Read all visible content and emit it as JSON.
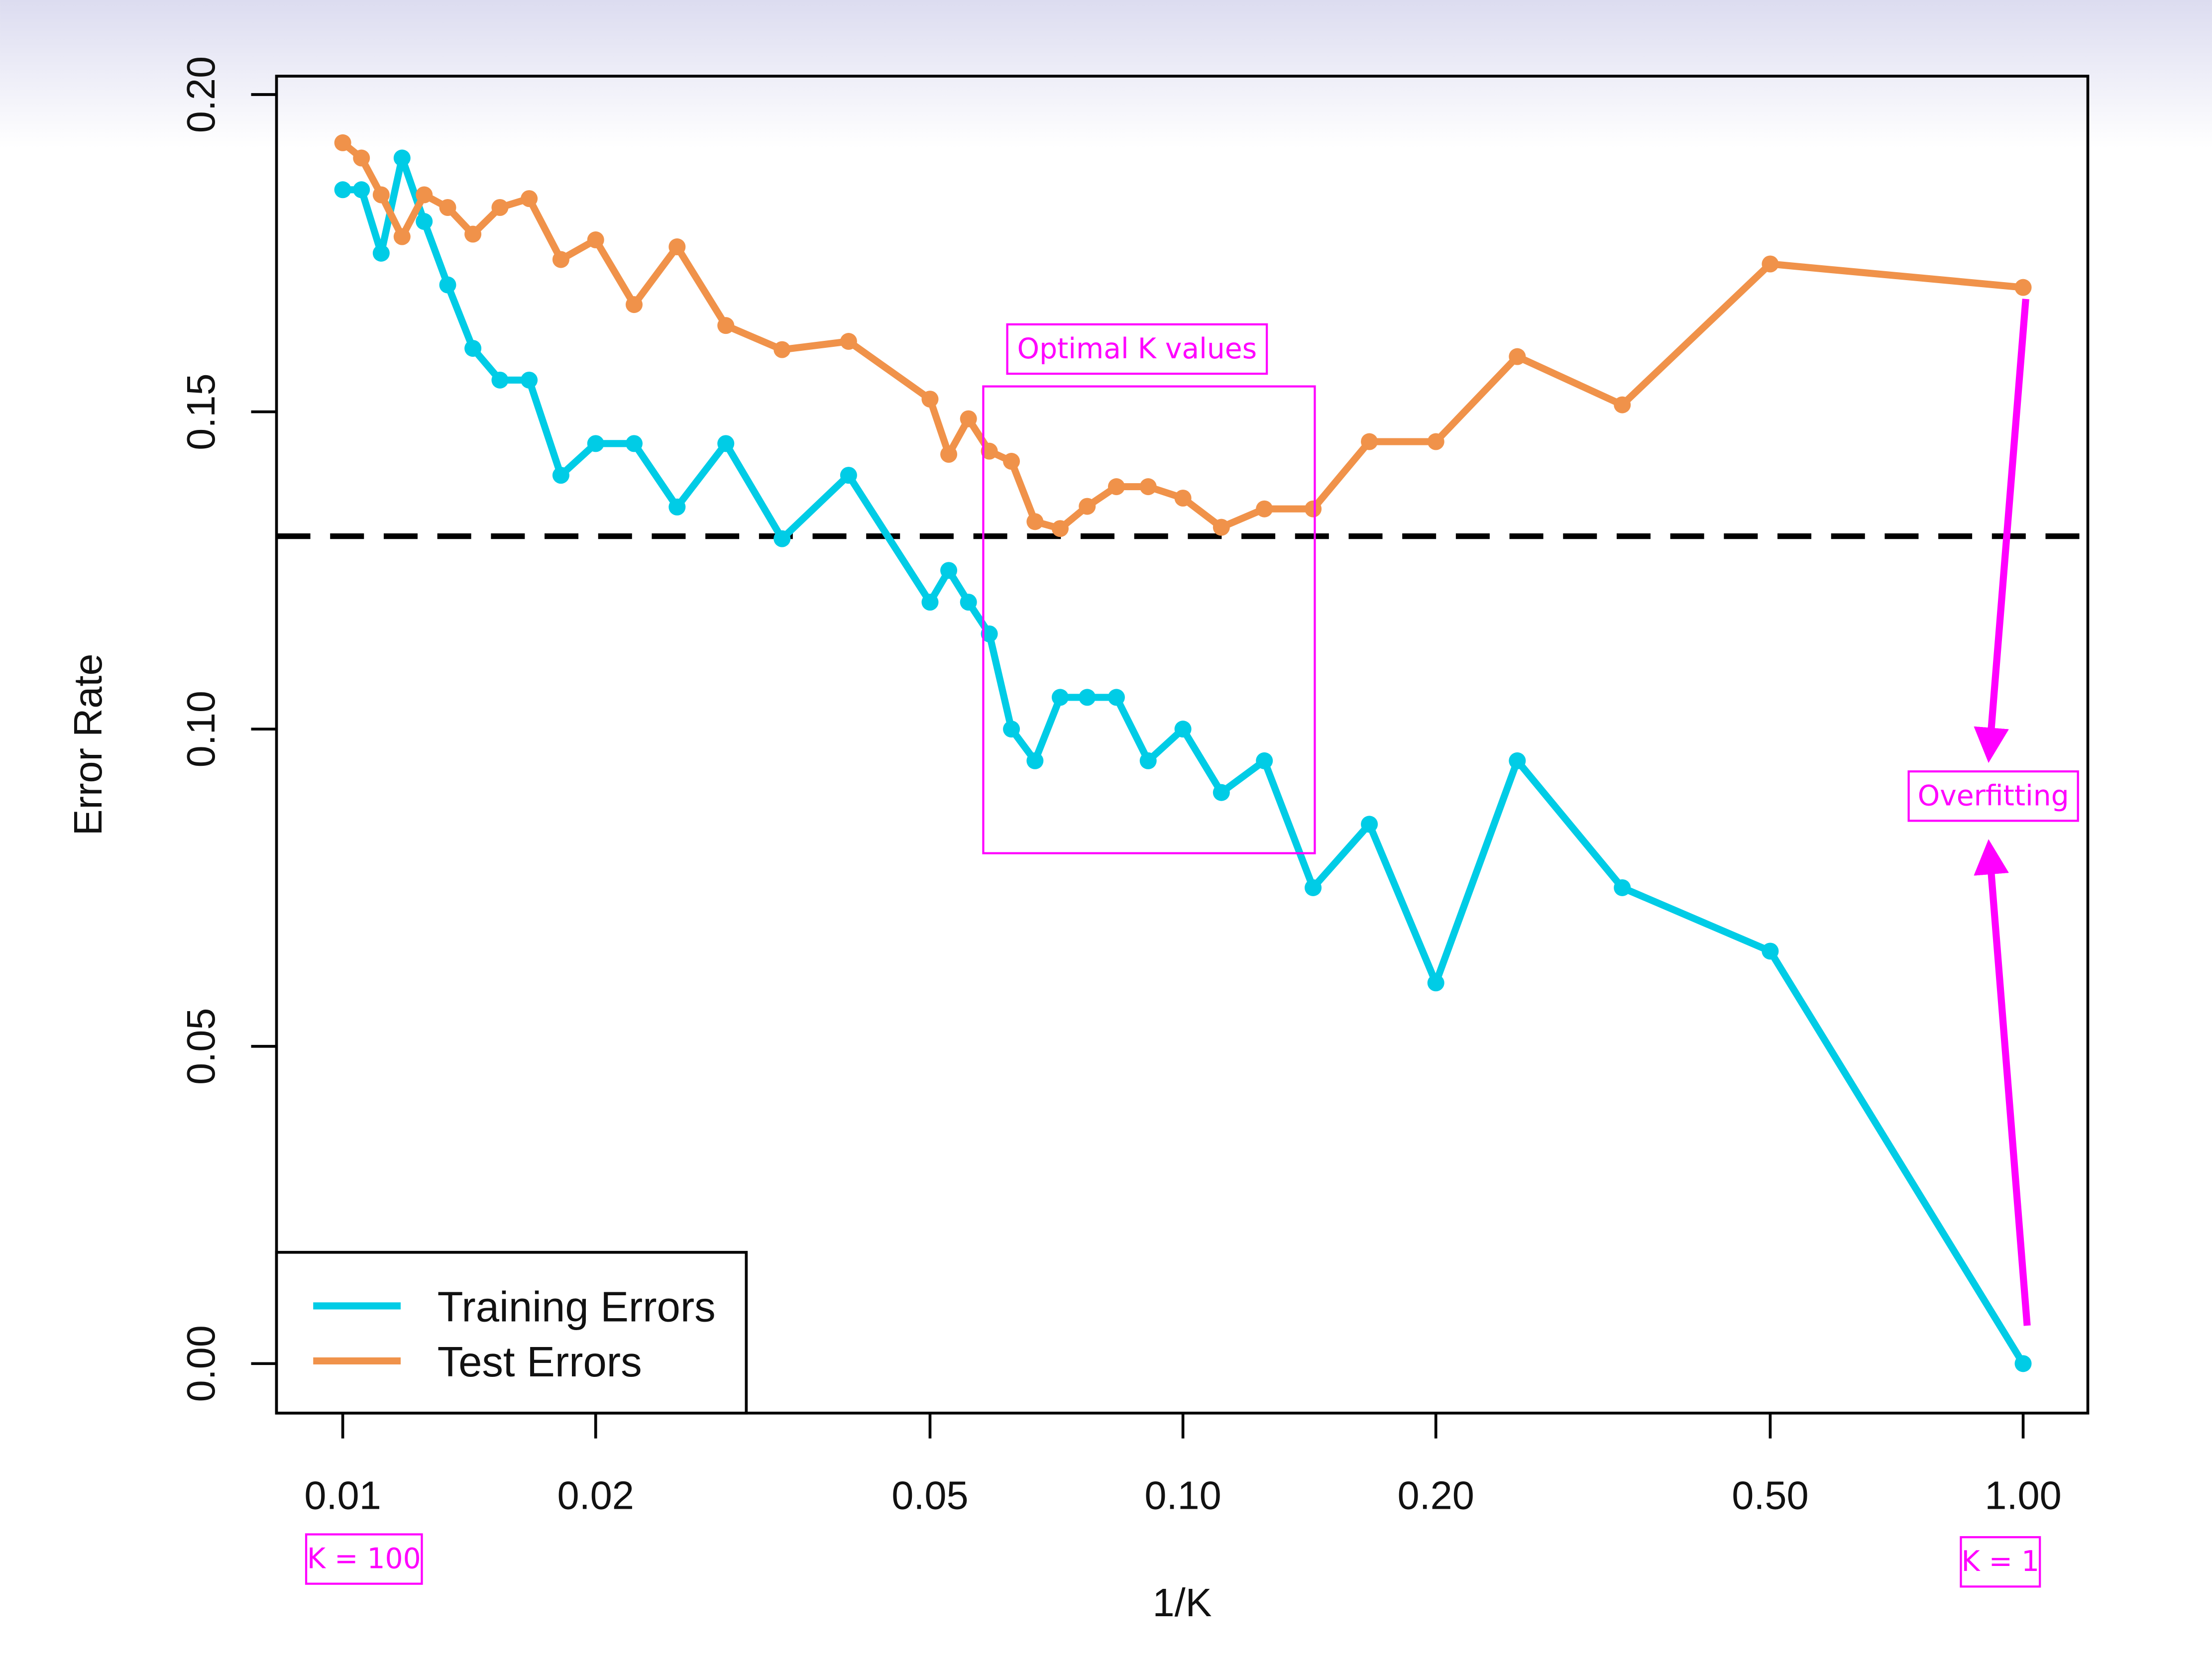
{
  "chart_data": {
    "type": "line",
    "x_label": "1/K",
    "y_label": "Error Rate",
    "x_log_scale": true,
    "xlim": [
      0.00834,
      1.194
    ],
    "ylim": [
      -0.0078,
      0.2029
    ],
    "xticks": [
      0.01,
      0.02,
      0.05,
      {
        "value": 0.1,
        "label": "0.10"
      },
      {
        "value": 0.2,
        "label": "0.20"
      },
      {
        "value": 0.5,
        "label": "0.50"
      },
      {
        "value": 1,
        "label": "1.00"
      }
    ],
    "yticks": [
      {
        "value": 0,
        "label": "0.00"
      },
      0.05,
      {
        "value": 0.1,
        "label": "0.10"
      },
      0.15,
      {
        "value": 0.2,
        "label": "0.20"
      }
    ],
    "legend": "bottomleft",
    "x": [
      0.01,
      0.010526,
      0.011111,
      0.011765,
      0.0125,
      0.013333,
      0.014286,
      0.015385,
      0.016667,
      0.018182,
      0.02,
      0.022222,
      0.025,
      0.028571,
      0.033333,
      0.04,
      0.05,
      0.052632,
      0.055556,
      0.058824,
      0.0625,
      0.066667,
      0.071429,
      0.076923,
      0.083333,
      0.090909,
      0.1,
      0.11111,
      0.125,
      0.14286,
      0.16667,
      0.2,
      0.25,
      0.33333,
      0.5,
      1
    ],
    "series": [
      {
        "name": "Training Errors",
        "color": "#00cce6",
        "values": [
          0.185,
          0.185,
          0.175,
          0.19,
          0.18,
          0.17,
          0.16,
          0.155,
          0.155,
          0.14,
          0.145,
          0.145,
          0.135,
          0.145,
          0.13,
          0.14,
          0.12,
          0.125,
          0.12,
          0.115,
          0.1,
          0.095,
          0.105,
          0.105,
          0.105,
          0.095,
          0.1,
          0.09,
          0.095,
          0.075,
          0.085,
          0.06,
          0.095,
          0.075,
          0.065,
          0
        ]
      },
      {
        "name": "Test Errors",
        "color": "#f0924a",
        "values": [
          0.1924,
          0.19,
          0.1842,
          0.1776,
          0.1842,
          0.1822,
          0.178,
          0.1822,
          0.1836,
          0.174,
          0.1771,
          0.1669,
          0.176,
          0.1636,
          0.1598,
          0.1611,
          0.152,
          0.1433,
          0.1489,
          0.1438,
          0.1422,
          0.1327,
          0.1316,
          0.1351,
          0.1382,
          0.1382,
          0.1364,
          0.1318,
          0.1347,
          0.1347,
          0.1453,
          0.1453,
          0.1587,
          0.1511,
          0.1733,
          0.1696
        ]
      }
    ],
    "reference_line": 0.1304,
    "annotations": [
      "Optimal K values",
      "Overfitting",
      "K = 100",
      "K = 1"
    ]
  }
}
